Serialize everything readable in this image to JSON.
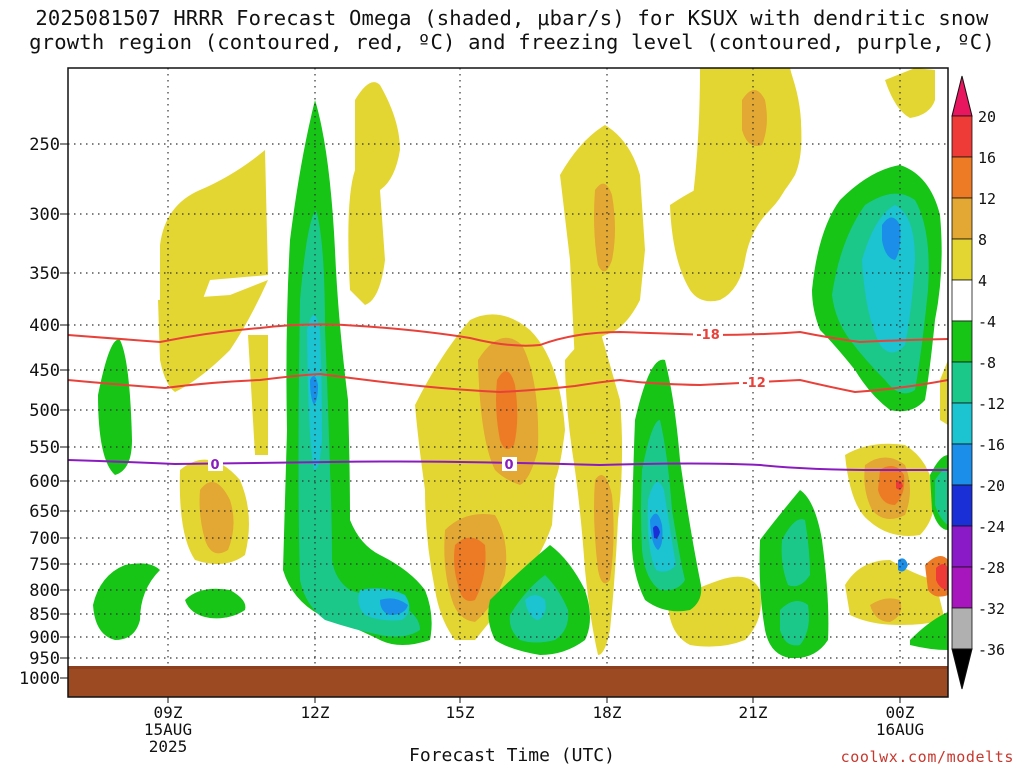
{
  "title": {
    "line1": "2025081507 HRRR Forecast Omega (shaded, μbar/s) for KSUX with dendritic snow",
    "line2": "growth region (contoured, red, ºC) and freezing level (contoured, purple, ºC)"
  },
  "chart_data": {
    "type": "heatmap",
    "xlabel": "Forecast Time (UTC)",
    "ylabel": "",
    "y_axis_pressure_levels_mb": [
      "250",
      "300",
      "350",
      "400",
      "450",
      "500",
      "550",
      "600",
      "650",
      "700",
      "750",
      "800",
      "850",
      "900",
      "950",
      "1000"
    ],
    "x_ticks": [
      {
        "label": "09Z",
        "sub1": "15AUG",
        "sub2": "2025"
      },
      {
        "label": "12Z",
        "sub1": "",
        "sub2": ""
      },
      {
        "label": "15Z",
        "sub1": "",
        "sub2": ""
      },
      {
        "label": "18Z",
        "sub1": "",
        "sub2": ""
      },
      {
        "label": "21Z",
        "sub1": "",
        "sub2": ""
      },
      {
        "label": "00Z",
        "sub1": "16AUG",
        "sub2": ""
      }
    ],
    "grid": "dotted, on",
    "contours": [
      {
        "value": "-18",
        "color": "#e8413a",
        "type": "temperature"
      },
      {
        "value": "-12",
        "color": "#e8413a",
        "type": "temperature"
      },
      {
        "value": "0",
        "color": "#8a1cbf",
        "type": "freezing level"
      }
    ],
    "colorbar": {
      "labels": [
        "20",
        "16",
        "12",
        "8",
        "4",
        "-4",
        "-8",
        "-12",
        "-16",
        "-20",
        "-24",
        "-28",
        "-32",
        "-36"
      ],
      "colors": [
        "#e8155f",
        "#ee3b38",
        "#ed7b26",
        "#e3a733",
        "#e4d632",
        "#ffffff",
        "#16c516",
        "#1bc88a",
        "#1cc3d0",
        "#1a8ee8",
        "#1a2fd6",
        "#8a19c8",
        "#a715bc",
        "#b0b0b0",
        "#000000"
      ]
    }
  },
  "colors": {
    "yellow": "#e4d632",
    "gold": "#e3a733",
    "orange": "#ed7b26",
    "green": "#16c516",
    "teal": "#1bc88a",
    "cyan": "#1cc3d0",
    "blue": "#1a8ee8",
    "deepblue": "#1a2fd6",
    "red": "#ee3b38",
    "ground": "#9b4a22"
  },
  "credit": "coolwx.com/modelts"
}
